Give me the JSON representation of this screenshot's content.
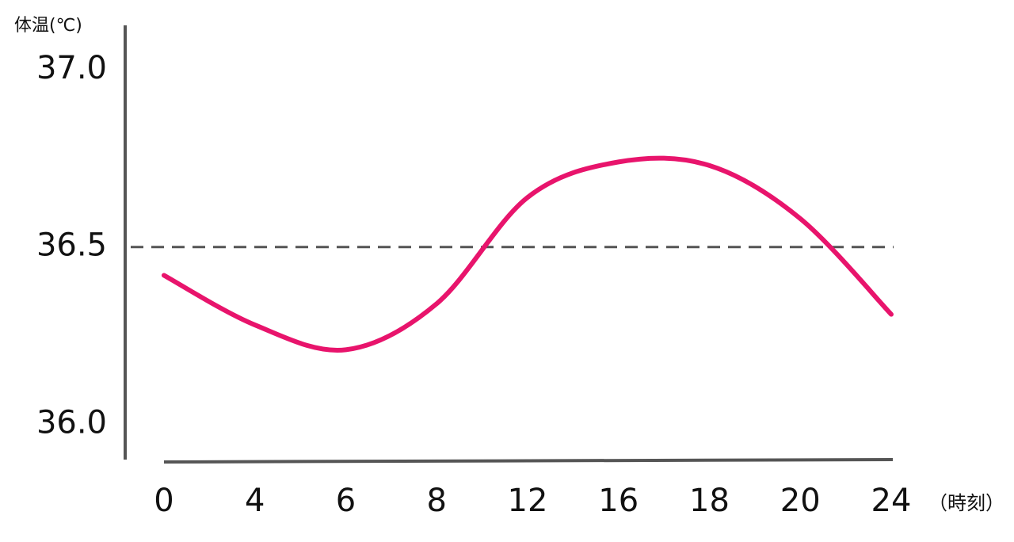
{
  "chart_data": {
    "type": "line",
    "y_label": "体温(℃)",
    "x_label": "（時刻）",
    "categories": [
      "0",
      "4",
      "6",
      "8",
      "12",
      "16",
      "18",
      "20",
      "24"
    ],
    "series": [
      {
        "name": "体温",
        "color": "#e8146c",
        "values": [
          36.42,
          36.28,
          36.21,
          36.34,
          36.64,
          36.74,
          36.73,
          36.58,
          36.31
        ]
      }
    ],
    "ylim": [
      35.9,
      37.13
    ],
    "yticks": [
      {
        "value": 37,
        "label": "37.0"
      },
      {
        "value": 36.5,
        "label": "36.5"
      },
      {
        "value": 36,
        "label": "36.0"
      }
    ],
    "reference_line": 36.5,
    "legend": false
  }
}
